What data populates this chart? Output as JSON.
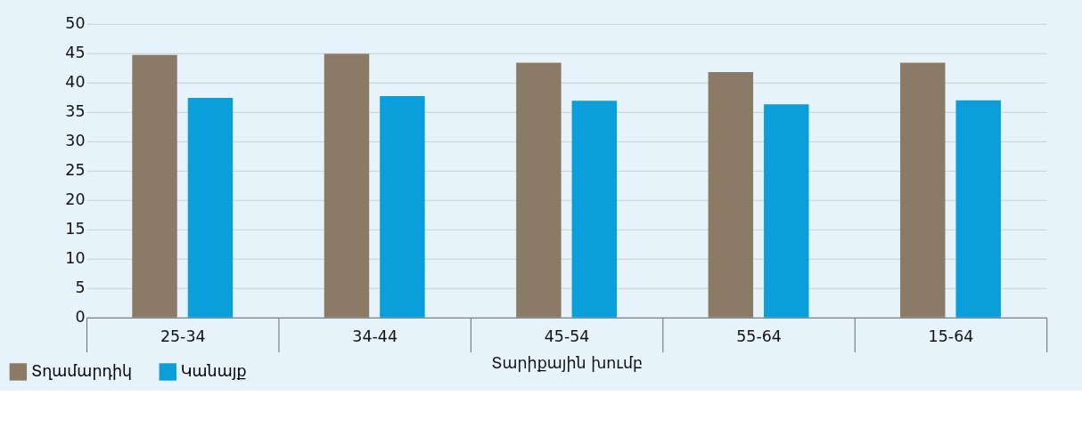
{
  "chart_data": {
    "type": "bar",
    "xlabel": "Տարիքային խումբ",
    "categories": [
      "25-34",
      "34-44",
      "45-54",
      "55-64",
      "15-64"
    ],
    "series": [
      {
        "name": "Տղամարդիկ",
        "color": "#8a7a66",
        "values": [
          44.7,
          44.9,
          43.4,
          41.8,
          43.4
        ]
      },
      {
        "name": "Կանայք",
        "color": "#0a9edb",
        "values": [
          37.4,
          37.7,
          36.9,
          36.3,
          37.0
        ]
      }
    ],
    "ylim": [
      0,
      50
    ],
    "yticks": [
      0,
      5,
      10,
      15,
      20,
      25,
      30,
      35,
      40,
      45,
      50
    ],
    "grid": "y",
    "legend": "bottom left"
  }
}
